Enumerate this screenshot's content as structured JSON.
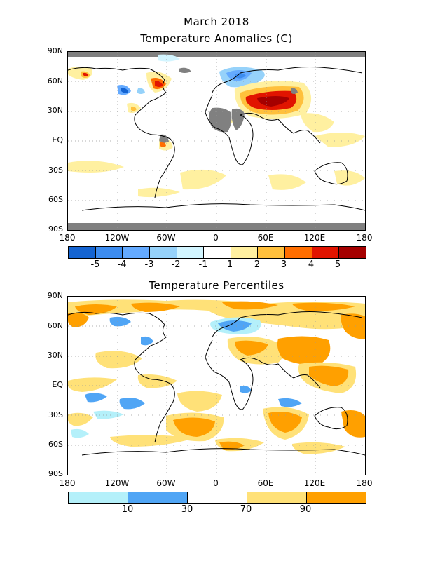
{
  "month_title": "March 2018",
  "top_panel": {
    "title": "Temperature Anomalies (C)",
    "lat_labels": [
      "90N",
      "60N",
      "30N",
      "EQ",
      "30S",
      "60S",
      "90S"
    ],
    "lon_labels": [
      "180",
      "120W",
      "60W",
      "0",
      "60E",
      "120E",
      "180"
    ],
    "legend_colors": [
      "#1464d2",
      "#3c8cf0",
      "#64aaff",
      "#96d2fa",
      "#d2f5ff",
      "#ffffff",
      "#fff0a0",
      "#ffc03c",
      "#ff6e00",
      "#e11400",
      "#a50000"
    ],
    "legend_labels": [
      "-5",
      "-4",
      "-3",
      "-2",
      "-1",
      "1",
      "2",
      "3",
      "4",
      "5"
    ],
    "missing_color": "#808080"
  },
  "bottom_panel": {
    "title": "Temperature Percentiles",
    "lat_labels": [
      "90N",
      "60N",
      "30N",
      "EQ",
      "30S",
      "60S",
      "90S"
    ],
    "lon_labels": [
      "180",
      "120W",
      "60W",
      "0",
      "60E",
      "120E",
      "180"
    ],
    "legend_colors": [
      "#b4f0fa",
      "#50a5f5",
      "#ffffff",
      "#ffe178",
      "#ffa000"
    ],
    "legend_labels": [
      "10",
      "30",
      "70",
      "90"
    ]
  }
}
